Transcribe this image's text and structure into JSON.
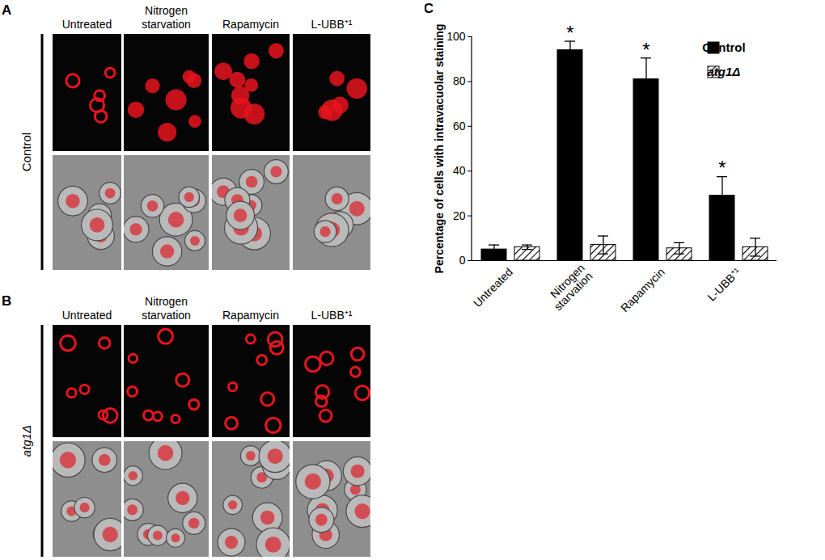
{
  "panels": [
    {
      "label": "A",
      "row_label": "Control",
      "columns": [
        "Untreated",
        "Nitrogen starvation",
        "Rapamycin",
        "L-UBB⁺¹"
      ]
    },
    {
      "label": "B",
      "row_label": "atg1Δ",
      "columns": [
        "Untreated",
        "Nitrogen starvation",
        "Rapamycin",
        "L-UBB⁺¹"
      ]
    }
  ],
  "chart_data": {
    "type": "bar",
    "title": "C",
    "categories": [
      "Untreated",
      "Nitrogen starvation",
      "Rapamycin",
      "L-UBB⁺¹"
    ],
    "ylabel": "Percentage of cells with intravacuolar staining",
    "ylim": [
      0,
      100
    ],
    "yticks": [
      0,
      20,
      40,
      60,
      80,
      100
    ],
    "legend": "top-right",
    "series": [
      {
        "name": "Control",
        "color": "#000000",
        "marker": "solid",
        "values": [
          5,
          94,
          81,
          29
        ],
        "errors": [
          2,
          4,
          9.5,
          8.5
        ],
        "annotations": [
          null,
          "*",
          "*",
          "*"
        ]
      },
      {
        "name": "atg1Δ",
        "color": "#000000",
        "marker": "hatched",
        "values": [
          6,
          7,
          5.5,
          6
        ],
        "errors": [
          1,
          4,
          2.5,
          4
        ]
      }
    ]
  }
}
